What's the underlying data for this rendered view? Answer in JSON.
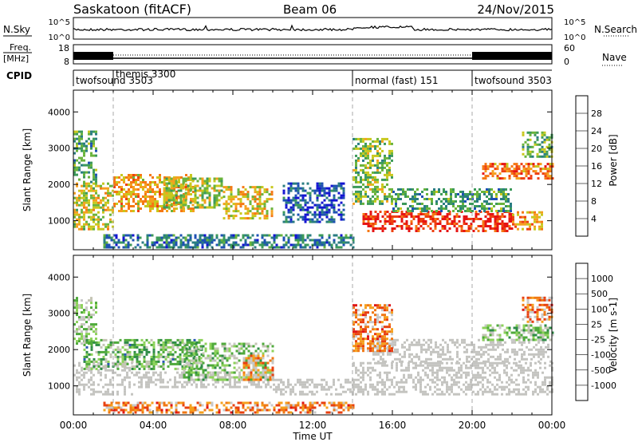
{
  "header": {
    "station": "Saskatoon (fitACF)",
    "beam": "Beam 06",
    "date": "24/Nov/2015"
  },
  "noise_panel": {
    "left_label": "N.Sky",
    "left_ticks": [
      "10^5",
      "10^0"
    ],
    "right_ticks": [
      "10^5",
      "10^0"
    ],
    "right_label": "N.Search"
  },
  "freq_panel": {
    "left_label_top": "Freq.",
    "left_label_unit": "[MHz]",
    "left_ticks": [
      "18",
      "8"
    ],
    "right_ticks": [
      "60",
      "0"
    ],
    "right_label": "Nave"
  },
  "cpid": {
    "label": "CPID",
    "segments": [
      {
        "name": "twofsound 3503",
        "start_h": 0
      },
      {
        "name": "themis 3300",
        "start_h": 2
      },
      {
        "name": "normal (fast) 151",
        "start_h": 14
      },
      {
        "name": "twofsound 3503",
        "start_h": 20
      }
    ]
  },
  "time_axis": {
    "ticks": [
      "00:00",
      "04:00",
      "08:00",
      "12:00",
      "16:00",
      "20:00",
      "00:00"
    ],
    "label": "Time UT",
    "range_h": [
      0,
      24
    ],
    "dashed_lines_h": [
      2,
      14,
      20
    ]
  },
  "colors": {
    "power_scale": [
      "#1414d2",
      "#1e50b4",
      "#2a7d82",
      "#3c9a5a",
      "#6ab43c",
      "#c8c81e",
      "#f5a01e",
      "#f57814",
      "#ee4010",
      "#e61414"
    ],
    "velocity_scale": [
      "#2020b4",
      "#2858b4",
      "#2e8c46",
      "#50aa3c",
      "#8cd25a",
      "#c4c4b4",
      "#c8c8c8",
      "#f5a01e",
      "#f07814",
      "#e84010",
      "#e01414"
    ],
    "ground_scatter": "#c4c4c0"
  },
  "chart_data": [
    {
      "type": "heatmap",
      "title": "",
      "xlabel": "",
      "ylabel": "Slant Range [km]",
      "ylim": [
        200,
        4600
      ],
      "yticks": [
        "1000",
        "2000",
        "3000",
        "4000"
      ],
      "colorbar": {
        "label": "Power [dB]",
        "range": [
          0,
          32
        ],
        "ticks": [
          "4",
          "8",
          "12",
          "16",
          "20",
          "24",
          "28"
        ]
      },
      "regions": [
        {
          "t0": 0.0,
          "t1": 1.2,
          "r0": 2100,
          "r1": 3500,
          "level": 0.35
        },
        {
          "t0": 0.0,
          "t1": 2.0,
          "r0": 800,
          "r1": 2100,
          "level": 0.55
        },
        {
          "t0": 2.0,
          "t1": 6.0,
          "r0": 1300,
          "r1": 2300,
          "level": 0.65
        },
        {
          "t0": 4.5,
          "t1": 7.5,
          "r0": 1400,
          "r1": 2200,
          "level": 0.5
        },
        {
          "t0": 7.5,
          "t1": 10.0,
          "r0": 1100,
          "r1": 2000,
          "level": 0.6
        },
        {
          "t0": 10.5,
          "t1": 13.5,
          "r0": 1000,
          "r1": 2100,
          "level": 0.15
        },
        {
          "t0": 1.5,
          "t1": 14.0,
          "r0": 300,
          "r1": 650,
          "level": 0.25
        },
        {
          "t0": 14.0,
          "t1": 16.0,
          "r0": 1500,
          "r1": 3300,
          "level": 0.45
        },
        {
          "t0": 14.5,
          "t1": 22.0,
          "r0": 750,
          "r1": 1300,
          "level": 0.9
        },
        {
          "t0": 16.0,
          "t1": 22.0,
          "r0": 1300,
          "r1": 1900,
          "level": 0.35
        },
        {
          "t0": 20.5,
          "t1": 24.0,
          "r0": 2200,
          "r1": 2600,
          "level": 0.75
        },
        {
          "t0": 22.5,
          "t1": 24.0,
          "r0": 2800,
          "r1": 3500,
          "level": 0.4
        },
        {
          "t0": 22.0,
          "t1": 23.5,
          "r0": 800,
          "r1": 1300,
          "level": 0.7
        }
      ]
    },
    {
      "type": "heatmap",
      "title": "",
      "xlabel": "Time UT",
      "ylabel": "Slant Range [km]",
      "ylim": [
        200,
        4600
      ],
      "yticks": [
        "1000",
        "2000",
        "3000",
        "4000"
      ],
      "colorbar": {
        "label": "Velocity [m s-1]",
        "range": [
          -1000,
          1000
        ],
        "ticks": [
          "1000",
          "500",
          "100",
          "25",
          "-25",
          "-100",
          "-500",
          "-1000"
        ]
      },
      "ground_scatter": [
        {
          "t0": 0.0,
          "t1": 3.0,
          "r0": 800,
          "r1": 1700
        },
        {
          "t0": 3.0,
          "t1": 10.0,
          "r0": 1000,
          "r1": 1400
        },
        {
          "t0": 10.0,
          "t1": 14.0,
          "r0": 800,
          "r1": 1200
        },
        {
          "t0": 14.0,
          "t1": 24.0,
          "r0": 800,
          "r1": 1700
        },
        {
          "t0": 15.0,
          "t1": 24.0,
          "r0": 1700,
          "r1": 2300
        }
      ],
      "regions": [
        {
          "t0": 0.0,
          "t1": 1.2,
          "r0": 2200,
          "r1": 3500,
          "level": 0.45
        },
        {
          "t0": 0.5,
          "t1": 6.5,
          "r0": 1500,
          "r1": 2300,
          "level": 0.35
        },
        {
          "t0": 5.5,
          "t1": 10.0,
          "r0": 1200,
          "r1": 2200,
          "level": 0.4
        },
        {
          "t0": 8.5,
          "t1": 10.0,
          "r0": 1200,
          "r1": 1900,
          "level": 0.7
        },
        {
          "t0": 1.5,
          "t1": 14.0,
          "r0": 300,
          "r1": 600,
          "level": 0.75
        },
        {
          "t0": 14.0,
          "t1": 16.0,
          "r0": 2000,
          "r1": 3300,
          "level": 0.75
        },
        {
          "t0": 20.5,
          "t1": 24.0,
          "r0": 2300,
          "r1": 2700,
          "level": 0.4
        },
        {
          "t0": 22.5,
          "t1": 24.0,
          "r0": 2800,
          "r1": 3500,
          "level": 0.75
        }
      ]
    }
  ]
}
